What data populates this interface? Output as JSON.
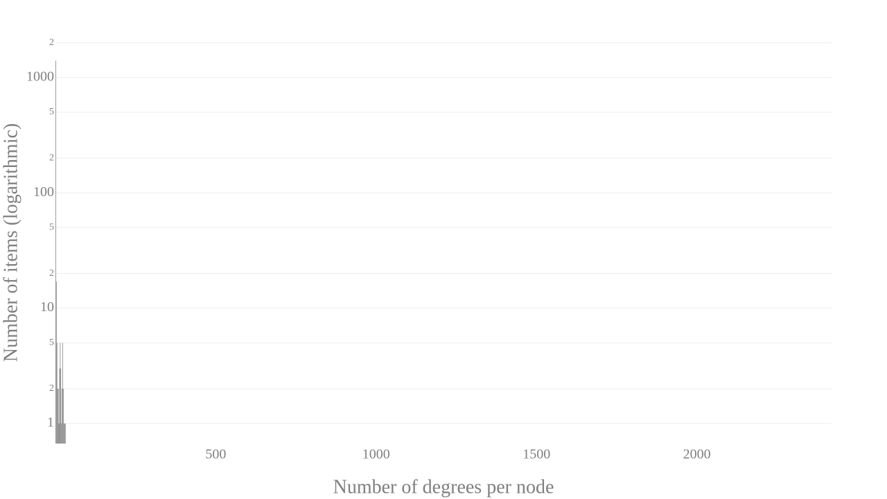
{
  "chart_data": {
    "type": "histogram",
    "x_label": "Number of degrees per node",
    "y_label": "Number of items (logarithmic)",
    "bins": [
      0,
      2,
      4,
      6,
      8,
      10,
      12,
      14,
      16,
      18,
      20,
      22,
      24,
      26,
      28,
      30,
      32
    ],
    "values": [
      1400,
      17,
      5,
      2,
      2,
      1,
      3,
      5,
      3,
      1,
      2,
      5,
      2,
      1,
      1,
      1
    ],
    "color": "#808080",
    "xlim": [
      0,
      2420
    ],
    "xticks": [
      500,
      1000,
      1500,
      2000
    ],
    "ylim": [
      0.67,
      2700
    ],
    "yscale": "log",
    "yticks": [
      1,
      2,
      5,
      10,
      {
        "value": 20,
        "label": "2"
      },
      {
        "value": 50,
        "label": "5"
      },
      100,
      {
        "value": 200,
        "label": "2"
      },
      {
        "value": 500,
        "label": "5"
      },
      1000,
      {
        "value": 2000,
        "label": "2"
      }
    ],
    "grid": true
  }
}
